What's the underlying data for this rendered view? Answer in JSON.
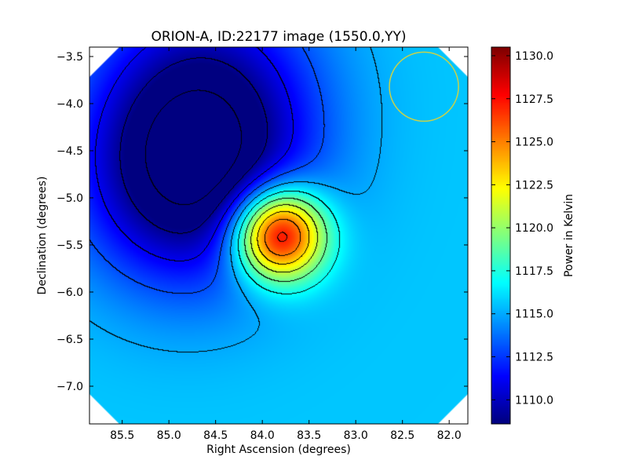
{
  "chart_data": {
    "type": "heatmap",
    "title": "ORION-A, ID:22177 image (1550.0,YY)",
    "xlabel": "Right Ascension (degrees)",
    "ylabel": "Declination (degrees)",
    "xlim": [
      85.85,
      81.8
    ],
    "ylim": [
      -7.4,
      -3.4
    ],
    "x_ticks": [
      85.5,
      85.0,
      84.5,
      84.0,
      83.5,
      83.0,
      82.5,
      82.0
    ],
    "x_tick_labels": [
      "85.5",
      "85.0",
      "84.5",
      "84.0",
      "83.5",
      "83.0",
      "82.5",
      "82.0"
    ],
    "y_ticks": [
      -3.5,
      -4.0,
      -4.5,
      -5.0,
      -5.5,
      -6.0,
      -6.5,
      -7.0
    ],
    "y_tick_labels": [
      "−3.5",
      "−4.0",
      "−4.5",
      "−5.0",
      "−5.5",
      "−6.0",
      "−6.5",
      "−7.0"
    ],
    "colorbar": {
      "label": "Power in Kelvin",
      "range": [
        1108.6,
        1130.5
      ],
      "colormap": "jet",
      "ticks": [
        1110.0,
        1112.5,
        1115.0,
        1117.5,
        1120.0,
        1122.5,
        1125.0,
        1127.5,
        1130.0
      ],
      "tick_labels": [
        "1110.0",
        "1112.5",
        "1115.0",
        "1117.5",
        "1120.0",
        "1122.5",
        "1125.0",
        "1127.5",
        "1130.0"
      ]
    },
    "background_level": 1115.6,
    "sources": [
      {
        "ra": 83.82,
        "dec": -5.39,
        "peak": 1130.4,
        "sigma": 0.34
      },
      {
        "ra": 84.8,
        "dec": -4.85,
        "peak": 1108.6,
        "sigma": 0.8
      },
      {
        "ra": 84.6,
        "dec": -3.9,
        "peak": 1110.2,
        "sigma": 0.85
      }
    ],
    "beam": {
      "ra": 82.27,
      "dec": -3.82,
      "radius_deg": 0.37,
      "color": "#c8d24a"
    },
    "contour_color": "#000000"
  }
}
